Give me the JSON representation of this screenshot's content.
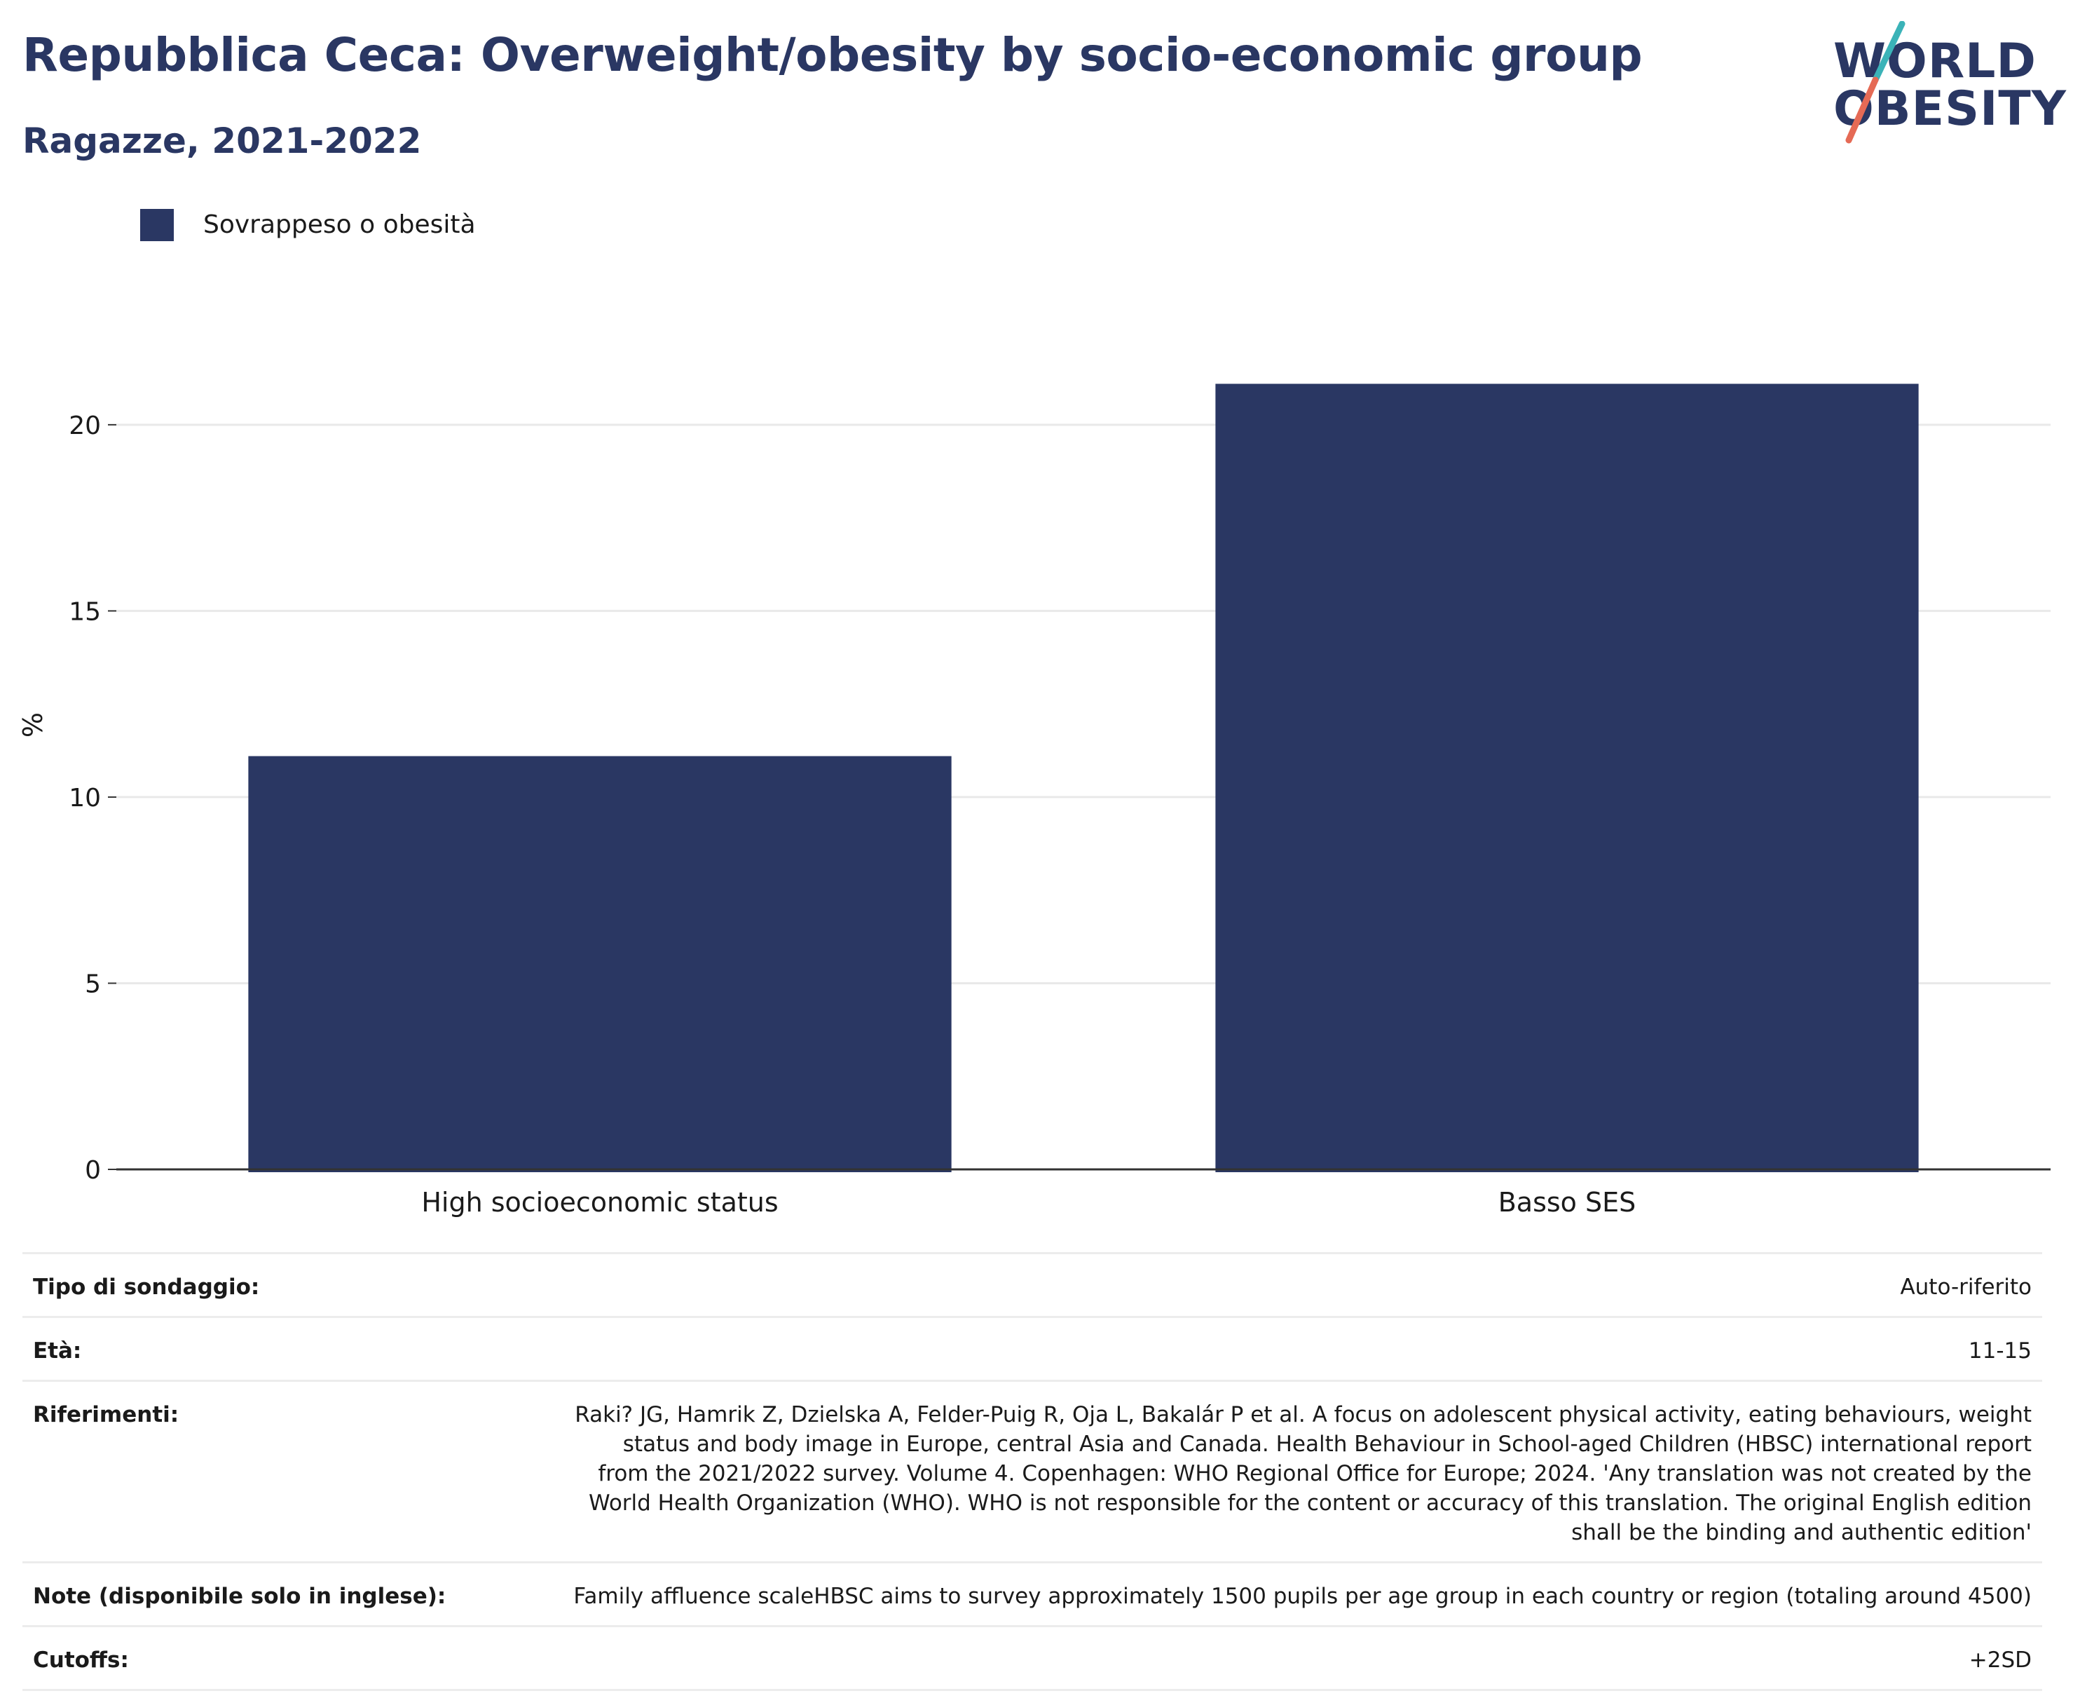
{
  "header": {
    "title": "Repubblica Ceca: Overweight/obesity by socio-economic group",
    "subtitle": "Ragazze, 2021-2022"
  },
  "logo": {
    "line1": "WORLD",
    "line2": "OBESITY",
    "colors": {
      "text": "#2a3763",
      "slash_teal": "#3bb3b8",
      "slash_coral": "#e56a55"
    }
  },
  "chart_data": {
    "type": "bar",
    "categories": [
      "High socioeconomic status",
      "Basso SES"
    ],
    "series": [
      {
        "name": "Sovrappeso o obesità",
        "values": [
          11.1,
          21.1
        ],
        "color": "#2a3763"
      }
    ],
    "ylabel": "%",
    "xlabel": "",
    "ylim": [
      0,
      23.5
    ],
    "yticks": [
      0,
      5,
      10,
      15,
      20
    ],
    "grid": true,
    "legend_position": "top-left"
  },
  "info": [
    {
      "label": "Tipo di sondaggio:",
      "value": "Auto-riferito"
    },
    {
      "label": "Età:",
      "value": "11-15"
    },
    {
      "label": "Riferimenti:",
      "value": "Raki? JG, Hamrik Z, Dzielska A, Felder-Puig R, Oja L, Bakalár P et al. A focus on adolescent physical activity, eating behaviours, weight status and body image in Europe, central Asia and Canada. Health Behaviour in School-aged Children (HBSC) international report from the 2021/2022 survey. Volume 4. Copenhagen: WHO Regional Office for Europe; 2024. 'Any translation was not created by the World Health Organization (WHO). WHO is not responsible for the content or accuracy of this translation. The original English edition shall be the binding and authentic edition'"
    },
    {
      "label": "Note (disponibile solo in inglese):",
      "value": "Family affluence scaleHBSC aims to survey approximately 1500 pupils per age group in each country or region (totaling around 4500)"
    },
    {
      "label": "Cutoffs:",
      "value": "+2SD"
    }
  ]
}
